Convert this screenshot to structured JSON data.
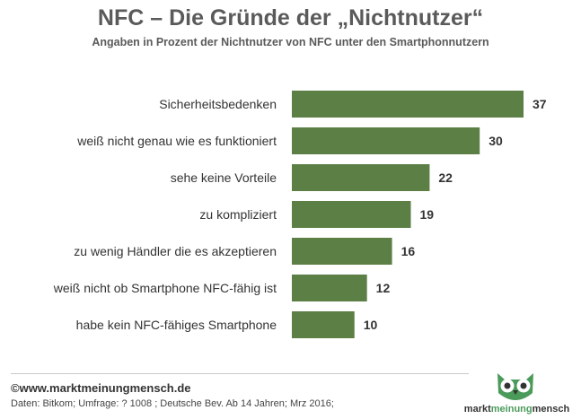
{
  "header": {
    "title": "NFC – Die Gründe der „Nichtnutzer“",
    "subtitle": "Angaben in Prozent der Nichtnutzer von NFC unter den Smartphonnutzern"
  },
  "chart_data": {
    "type": "bar",
    "orientation": "horizontal",
    "title": "NFC – Die Gründe der „Nichtnutzer“",
    "subtitle": "Angaben in Prozent der Nichtnutzer von NFC unter den Smartphonnutzern",
    "categories": [
      "Sicherheitsbedenken",
      "weiß nicht genau wie es funktioniert",
      "sehe keine Vorteile",
      "zu kompliziert",
      "zu wenig Händler die es akzeptieren",
      "weiß nicht ob  Smartphone NFC-fähig ist",
      "habe kein NFC-fähiges Smartphone"
    ],
    "values": [
      37,
      30,
      22,
      19,
      16,
      12,
      10
    ],
    "bar_color": "#5c7f45",
    "xlim": [
      0,
      37
    ],
    "grid": false,
    "legend": "none",
    "data_labels": true
  },
  "footer": {
    "copyright": "©www.marktmeinungmensch.de",
    "source": "Daten: Bitkom; Umfrage: ? 1008 ; Deutsche Bev. Ab 14 Jahren; Mrz 2016;"
  },
  "logo": {
    "text_part1": "markt",
    "text_part2": "meinung",
    "text_part3": "mensch",
    "accent_color": "#4a9a5a",
    "icon": "owl-icon"
  }
}
